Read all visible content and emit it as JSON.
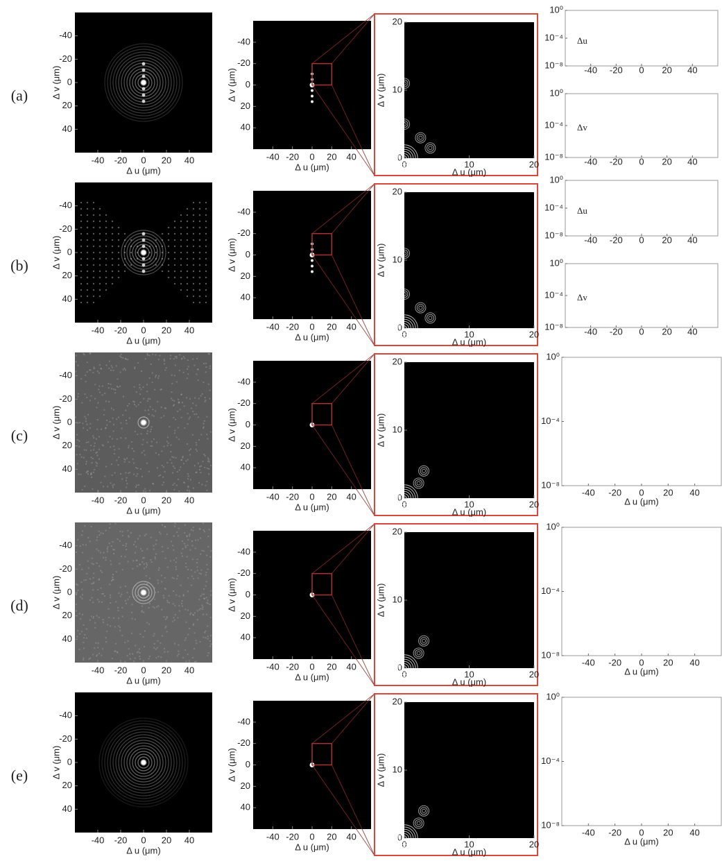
{
  "rows": [
    {
      "label": "(a)",
      "profiles": [
        "Δu",
        "Δv"
      ]
    },
    {
      "label": "(b)",
      "profiles": [
        "Δu",
        "Δv"
      ]
    },
    {
      "label": "(c)"
    },
    {
      "label": "(d)"
    },
    {
      "label": "(e)"
    }
  ],
  "image_axes": {
    "x_label": "Δ u (μm)",
    "y_label": "Δ v (μm)",
    "xlim": [
      -60,
      60
    ],
    "ylim": [
      -60,
      60
    ],
    "xticks": [
      -40,
      -20,
      0,
      20,
      40
    ],
    "yticks": [
      -40,
      -20,
      0,
      20,
      40
    ]
  },
  "zoom_axes": {
    "x_label": "Δ u (μm)",
    "y_label": "Δ v (μm)",
    "xlim": [
      0,
      20
    ],
    "ylim": [
      0,
      20
    ],
    "xticks": [
      0,
      10,
      20
    ],
    "yticks": [
      0,
      10,
      20
    ]
  },
  "profile_axes": {
    "x_label": "Δ u (μm)",
    "xlim": [
      -60,
      60
    ],
    "xticks": [
      -40,
      -20,
      0,
      20,
      40
    ],
    "log": true,
    "ylim": [
      1e-08,
      1
    ],
    "yticks": [
      {
        "value": 1,
        "label": "10⁰"
      },
      {
        "value": 0.0001,
        "label": "10⁻⁴"
      },
      {
        "value": 1e-08,
        "label": "10⁻⁸"
      }
    ],
    "color": "#2f3fa8"
  }
}
